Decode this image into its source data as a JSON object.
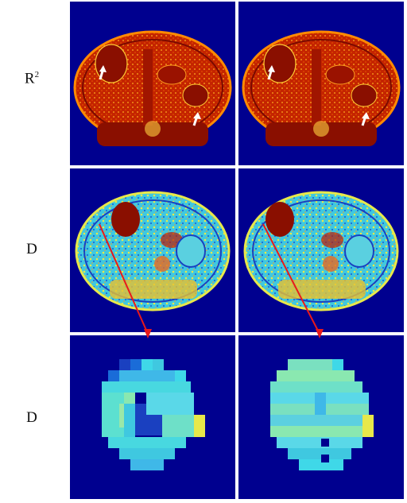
{
  "rows": [
    {
      "label": "R",
      "superscript": "2",
      "kind": "r2-map"
    },
    {
      "label": "D",
      "superscript": "",
      "kind": "d-map"
    },
    {
      "label": "D",
      "superscript": "",
      "kind": "d-zoom"
    }
  ],
  "colors": {
    "background": "#00008f",
    "r2_tissue": "#b31b00",
    "r2_dark": "#8a0f00",
    "d_cyan": "#3fd8e8",
    "d_yellow": "#e8e84a",
    "arrow_white": "#ffffff",
    "arrow_red": "#e8191b"
  }
}
